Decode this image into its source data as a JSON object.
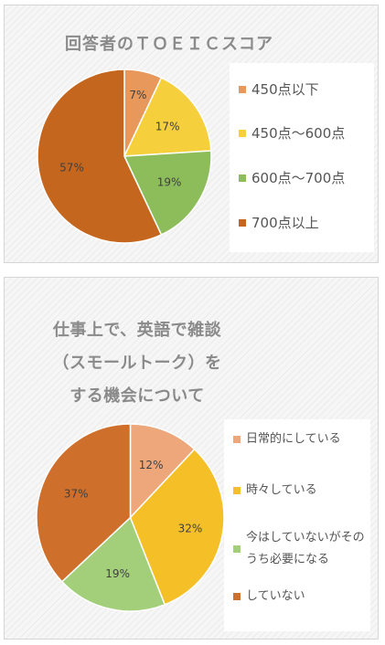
{
  "chart_data": [
    {
      "type": "pie",
      "title": "回答者のＴＯＥＩＣスコア",
      "categories": [
        "450点以下",
        "450点～600点",
        "600点～700点",
        "700点以上"
      ],
      "values": [
        7,
        17,
        19,
        57
      ],
      "labels": [
        "7%",
        "17%",
        "19%",
        "57%"
      ],
      "colors": [
        "#e8985a",
        "#f5cf3c",
        "#8dbd5a",
        "#c4661e"
      ],
      "legend": "right"
    },
    {
      "type": "pie",
      "title_lines": [
        "仕事上で、英語で雑談",
        "（スモールトーク）を",
        "する機会について"
      ],
      "categories": [
        "日常的にしている",
        "時々している",
        "今はしていないがそのうち必要になる",
        "していない"
      ],
      "values": [
        12,
        32,
        19,
        37
      ],
      "labels": [
        "12%",
        "32%",
        "19%",
        "37%"
      ],
      "colors": [
        "#eda77a",
        "#f5c027",
        "#a3cf7b",
        "#cf6f2c"
      ],
      "legend": "right"
    }
  ]
}
